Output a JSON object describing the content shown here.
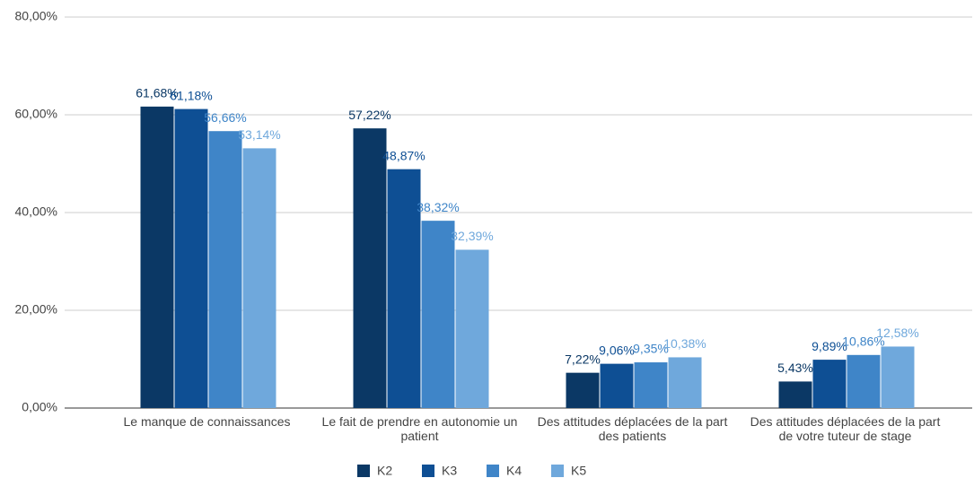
{
  "chart_data": {
    "type": "bar",
    "categories": [
      "Le manque de connaissances",
      "Le fait de prendre en autonomie un patient",
      "Des attitudes déplacées de la part des patients",
      "Des attitudes déplacées de la part de votre tuteur de stage"
    ],
    "series": [
      {
        "name": "K2",
        "color": "#0b3865",
        "values": [
          61.68,
          57.22,
          7.22,
          5.43
        ],
        "value_labels": [
          "61,68%",
          "57,22%",
          "7,22%",
          "5,43%"
        ]
      },
      {
        "name": "K3",
        "color": "#0e4f94",
        "values": [
          61.18,
          48.87,
          9.06,
          9.89
        ],
        "value_labels": [
          "61,18%",
          "48,87%",
          "9,06%",
          "9,89%"
        ]
      },
      {
        "name": "K4",
        "color": "#3f85c8",
        "values": [
          56.66,
          38.32,
          9.35,
          10.86
        ],
        "value_labels": [
          "56,66%",
          "38,32%",
          "9,35%",
          "10,86%"
        ]
      },
      {
        "name": "K5",
        "color": "#6fa8dc",
        "values": [
          53.14,
          32.39,
          10.38,
          12.58
        ],
        "value_labels": [
          "53,14%",
          "32,39%",
          "10,38%",
          "12,58%"
        ]
      }
    ],
    "ylim": [
      0,
      80
    ],
    "yticks": [
      {
        "value": 0,
        "label": "0,00%"
      },
      {
        "value": 20,
        "label": "20,00%"
      },
      {
        "value": 40,
        "label": "40,00%"
      },
      {
        "value": 60,
        "label": "60,00%"
      },
      {
        "value": 80,
        "label": "80,00%"
      }
    ],
    "grid": true,
    "legend": "bottom"
  }
}
